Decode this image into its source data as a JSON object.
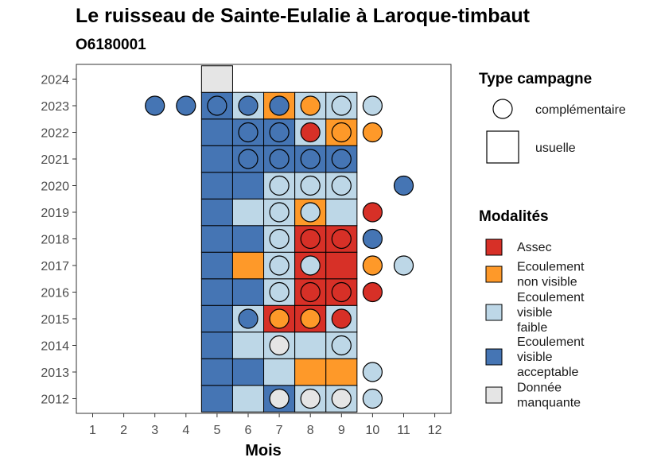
{
  "chart_data": {
    "type": "heatmap",
    "title": "Le ruisseau de Sainte-Eulalie à Laroque-timbaut",
    "subtitle": "O6180001",
    "xlabel": "Mois",
    "ylabel": "",
    "x_ticks": [
      "1",
      "2",
      "3",
      "4",
      "5",
      "6",
      "7",
      "8",
      "9",
      "10",
      "11",
      "12"
    ],
    "y_ticks": [
      "2012",
      "2013",
      "2014",
      "2015",
      "2016",
      "2017",
      "2018",
      "2019",
      "2020",
      "2021",
      "2022",
      "2023",
      "2024"
    ],
    "grid": false,
    "legend_position": "right",
    "legend_campagne": {
      "title": "Type campagne",
      "items": [
        {
          "key": "complementaire",
          "label": "complémentaire"
        },
        {
          "key": "usuelle",
          "label": "usuelle"
        }
      ]
    },
    "legend_modalites": {
      "title": "Modalités",
      "items": [
        {
          "key": "assec",
          "label_lines": [
            "Assec"
          ],
          "color": "#d73027"
        },
        {
          "key": "nv",
          "label_lines": [
            "Ecoulement",
            "non visible"
          ],
          "color": "#fe9929"
        },
        {
          "key": "faible",
          "label_lines": [
            "Ecoulement",
            "visible",
            "faible"
          ],
          "color": "#bdd7e7"
        },
        {
          "key": "acc",
          "label_lines": [
            "Ecoulement",
            "visible",
            "acceptable"
          ],
          "color": "#4575b4"
        },
        {
          "key": "nd",
          "label_lines": [
            "Donnée",
            "manquante"
          ],
          "color": "#e5e5e5"
        }
      ]
    },
    "usuelle": [
      {
        "year": 2012,
        "values": {
          "5": "acc",
          "6": "faible",
          "7": "acc",
          "8": "faible",
          "9": "faible"
        }
      },
      {
        "year": 2013,
        "values": {
          "5": "acc",
          "6": "acc",
          "7": "faible",
          "8": "nv",
          "9": "nv"
        }
      },
      {
        "year": 2014,
        "values": {
          "5": "acc",
          "6": "faible",
          "7": "faible",
          "8": "faible",
          "9": "faible"
        }
      },
      {
        "year": 2015,
        "values": {
          "5": "acc",
          "6": "faible",
          "7": "assec",
          "8": "assec",
          "9": "faible"
        }
      },
      {
        "year": 2016,
        "values": {
          "5": "acc",
          "6": "acc",
          "7": "faible",
          "8": "assec",
          "9": "assec"
        }
      },
      {
        "year": 2017,
        "values": {
          "5": "acc",
          "6": "nv",
          "7": "faible",
          "8": "assec",
          "9": "assec"
        }
      },
      {
        "year": 2018,
        "values": {
          "5": "acc",
          "6": "acc",
          "7": "faible",
          "8": "assec",
          "9": "assec"
        }
      },
      {
        "year": 2019,
        "values": {
          "5": "acc",
          "6": "faible",
          "7": "faible",
          "8": "nv",
          "9": "faible"
        }
      },
      {
        "year": 2020,
        "values": {
          "5": "acc",
          "6": "acc",
          "7": "faible",
          "8": "faible",
          "9": "faible"
        }
      },
      {
        "year": 2021,
        "values": {
          "5": "acc",
          "6": "acc",
          "7": "acc",
          "8": "acc",
          "9": "acc"
        }
      },
      {
        "year": 2022,
        "values": {
          "5": "acc",
          "6": "acc",
          "7": "acc",
          "8": "faible",
          "9": "nv"
        }
      },
      {
        "year": 2023,
        "values": {
          "5": "acc",
          "6": "faible",
          "7": "nv",
          "8": "faible",
          "9": "faible"
        }
      },
      {
        "year": 2024,
        "values": {
          "5": "nd"
        }
      }
    ],
    "complementaire": [
      {
        "year": 2012,
        "values": {
          "7": "nd",
          "8": "nd",
          "9": "nd",
          "10": "faible"
        }
      },
      {
        "year": 2013,
        "values": {
          "10": "faible"
        }
      },
      {
        "year": 2014,
        "values": {
          "7": "nd",
          "9": "faible"
        }
      },
      {
        "year": 2015,
        "values": {
          "6": "acc",
          "7": "nv",
          "8": "nv",
          "9": "assec"
        }
      },
      {
        "year": 2016,
        "values": {
          "7": "faible",
          "8": "assec",
          "9": "assec",
          "10": "assec"
        }
      },
      {
        "year": 2017,
        "values": {
          "7": "faible",
          "8": "faible",
          "10": "nv",
          "11": "faible"
        }
      },
      {
        "year": 2018,
        "values": {
          "7": "faible",
          "8": "assec",
          "9": "assec",
          "10": "acc"
        }
      },
      {
        "year": 2019,
        "values": {
          "7": "faible",
          "8": "faible",
          "10": "assec"
        }
      },
      {
        "year": 2020,
        "values": {
          "7": "faible",
          "8": "faible",
          "9": "faible",
          "11": "acc"
        }
      },
      {
        "year": 2021,
        "values": {
          "6": "acc",
          "7": "acc",
          "8": "acc",
          "9": "acc"
        }
      },
      {
        "year": 2022,
        "values": {
          "6": "acc",
          "7": "acc",
          "8": "assec",
          "9": "nv",
          "10": "nv"
        }
      },
      {
        "year": 2023,
        "values": {
          "3": "acc",
          "4": "acc",
          "5": "acc",
          "6": "acc",
          "7": "acc",
          "8": "nv",
          "9": "faible",
          "10": "faible"
        }
      }
    ]
  }
}
